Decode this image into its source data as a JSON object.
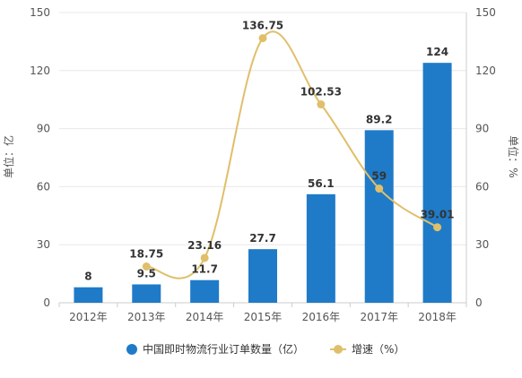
{
  "chart_data": {
    "type": "bar",
    "categories": [
      "2012年",
      "2013年",
      "2014年",
      "2015年",
      "2016年",
      "2017年",
      "2018年"
    ],
    "series": [
      {
        "name": "中国即时物流行业订单数量（亿）",
        "type": "bar",
        "axis": "left",
        "values": [
          8,
          9.5,
          11.7,
          27.7,
          56.1,
          89.2,
          124
        ],
        "labels": [
          "8",
          "9.5",
          "11.7",
          "27.7",
          "56.1",
          "89.2",
          "124"
        ]
      },
      {
        "name": "增速（%）",
        "type": "line",
        "axis": "right",
        "values": [
          null,
          18.75,
          23.16,
          136.75,
          102.53,
          59,
          39.01
        ],
        "labels": [
          "",
          "18.75",
          "23.16",
          "136.75",
          "102.53",
          "59",
          "39.01"
        ]
      }
    ],
    "ylabel_left": "单位：亿",
    "ylabel_right": "单位：%",
    "ylim_left": [
      0,
      150
    ],
    "ylim_right": [
      0,
      150
    ],
    "yticks_left": [
      "0",
      "30",
      "60",
      "90",
      "120",
      "150"
    ],
    "yticks_right": [
      "0",
      "30",
      "60",
      "90",
      "120",
      "150"
    ],
    "grid": true,
    "legend_position": "bottom",
    "colors": {
      "bar": "#1f7bc8",
      "line": "#e0bf6a",
      "grid": "#e8e8e8",
      "axis": "#cccccc"
    }
  }
}
